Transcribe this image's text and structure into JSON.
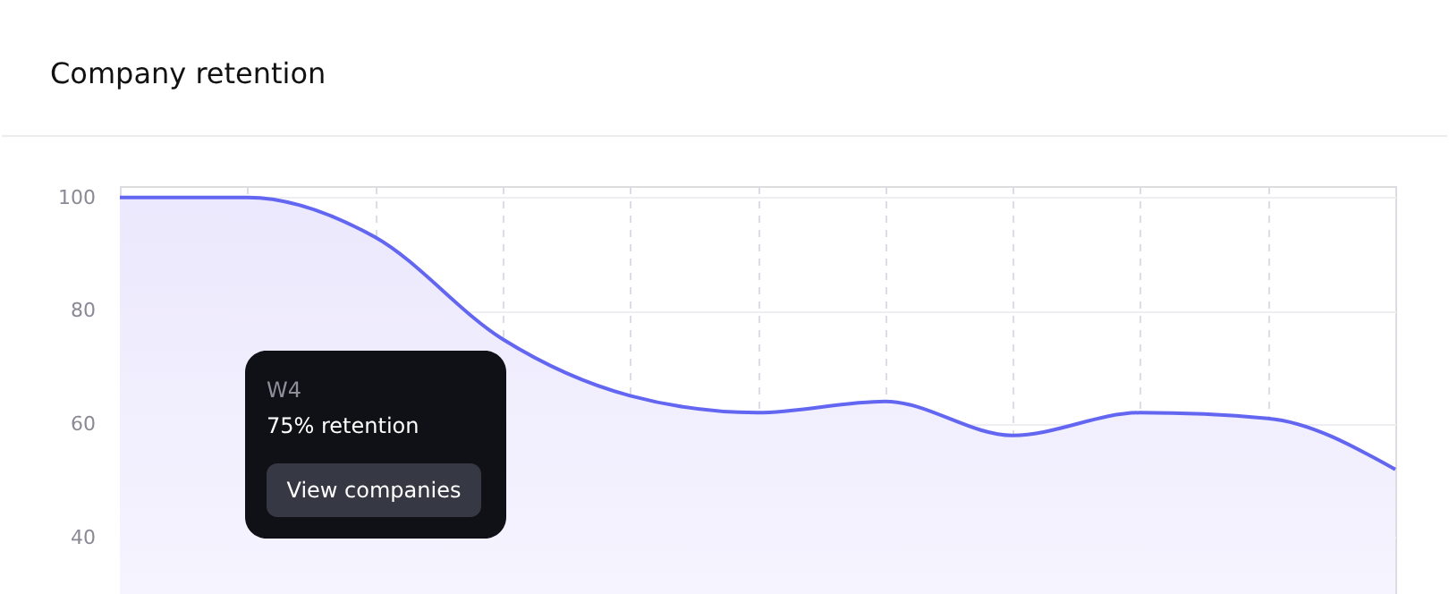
{
  "chart_data": {
    "type": "area",
    "title": "Company retention",
    "categories": [
      null,
      null,
      null,
      null,
      null,
      null,
      null,
      null,
      null,
      null,
      null
    ],
    "series": [
      {
        "color": "#6366f1",
        "values": [
          100,
          100,
          93,
          75,
          65,
          62,
          64,
          58,
          62,
          61,
          52
        ]
      }
    ],
    "ylim": [
      30,
      102
    ],
    "yticks": [
      40,
      60,
      80,
      100
    ],
    "grid": true,
    "tick_labels": "y",
    "marker": "none",
    "annotations": [
      "W4",
      "75% retention",
      "View companies"
    ]
  }
}
